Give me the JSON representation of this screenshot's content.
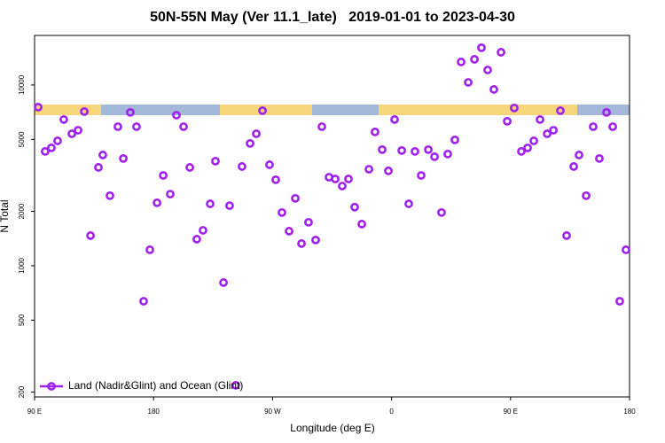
{
  "chart_data": {
    "type": "scatter",
    "title": "50N-55N May (Ver 11.1_late)   2019-01-01 to 2023-04-30",
    "xlabel": "Longitude (deg E)",
    "ylabel": "N Total",
    "log_y": true,
    "legend": "lower left",
    "xlim": [
      90,
      540
    ],
    "ylim": [
      188,
      18800
    ],
    "xticks": [
      {
        "value": 90,
        "label": "90 E"
      },
      180,
      {
        "value": 270,
        "label": "90 W"
      },
      {
        "value": 360,
        "label": "0"
      },
      {
        "value": 450,
        "label": "90 E"
      },
      {
        "value": 540,
        "label": "180"
      }
    ],
    "yticks": [
      200,
      500,
      1000,
      2000,
      5000,
      10000
    ],
    "x": [
      92.7,
      98.0,
      102.7,
      107.4,
      112.1,
      118.2,
      122.9,
      127.6,
      132.3,
      138.3,
      141.6,
      147.0,
      153.0,
      157.1,
      162.4,
      167.1,
      172.5,
      177.2,
      182.6,
      187.3,
      192.6,
      197.3,
      202.7,
      207.4,
      212.7,
      217.4,
      222.8,
      226.8,
      232.9,
      237.5,
      242.2,
      246.9,
      253.0,
      257.7,
      262.4,
      267.7,
      272.4,
      277.1,
      282.5,
      287.2,
      291.9,
      297.2,
      302.6,
      307.3,
      312.7,
      317.4,
      322.7,
      327.4,
      332.1,
      337.5,
      342.9,
      347.5,
      352.9,
      357.6,
      362.3,
      367.7,
      373.0,
      377.7,
      382.4,
      387.8,
      392.5,
      397.8,
      402.5,
      407.9,
      412.6,
      418.0,
      422.7,
      428.0,
      432.7,
      437.4,
      442.8,
      447.5,
      452.8,
      458.2,
      462.9,
      467.6,
      472.3,
      477.7,
      482.4,
      487.7,
      492.4,
      497.8,
      501.8,
      507.2,
      512.5,
      517.2,
      522.6,
      527.3,
      532.6,
      537.3
    ],
    "series": [
      {
        "name": "Land (Nadir&Glint) and Ocean (Glint)",
        "color": "#a020f0",
        "values": [
          7540,
          4290,
          4490,
          4910,
          6440,
          5370,
          5620,
          7130,
          1468,
          3500,
          4100,
          2440,
          5880,
          3920,
          7050,
          5880,
          636,
          1225,
          2230,
          3160,
          2490,
          6810,
          5880,
          3500,
          1403,
          1570,
          2200,
          3790,
          807,
          2150,
          218,
          3540,
          4750,
          5370,
          7210,
          3620,
          2990,
          1970,
          1553,
          2360,
          1326,
          1740,
          1388,
          5880,
          3090,
          3020,
          2760,
          3020,
          2110,
          1700,
          3420,
          5500,
          4390,
          3350,
          6440,
          4340,
          2200,
          4290,
          3160,
          4390,
          4010,
          1970,
          4150,
          4970,
          13410,
          10340,
          13870,
          16070,
          12110,
          9450,
          15180,
          6300,
          7460,
          4290,
          4490,
          4910,
          6440,
          5370,
          5620,
          7210,
          1468,
          3540,
          4100,
          2440,
          5880,
          3920,
          7050,
          5880,
          636,
          1225
        ]
      }
    ]
  }
}
